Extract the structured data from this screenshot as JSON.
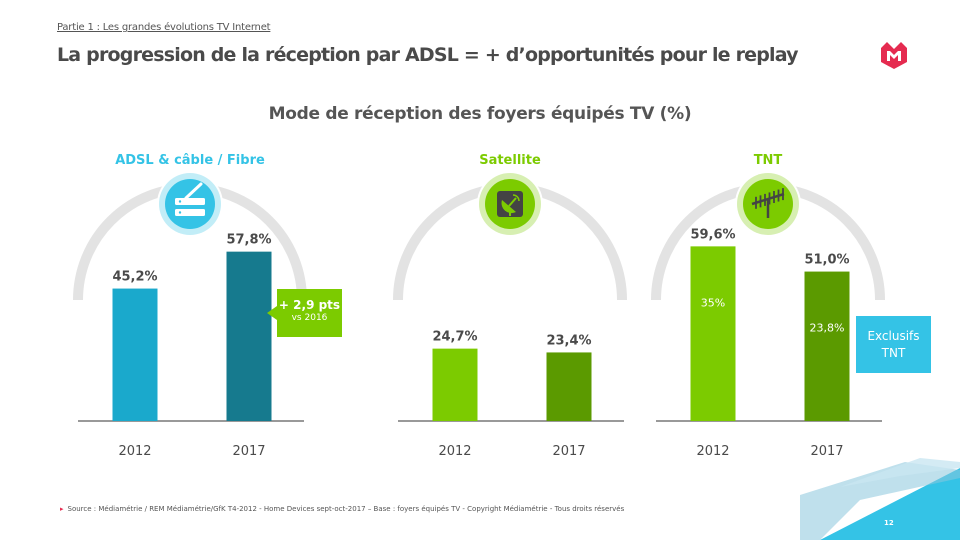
{
  "header": {
    "breadcrumb": "Partie 1 : Les grandes évolutions TV Internet",
    "title": "La progression de la réception par ADSL = + d’opportunités pour le replay"
  },
  "colors": {
    "adsl_light": "#1aa9cc",
    "adsl_dark": "#167a8e",
    "green_light": "#7ccb00",
    "green_dark": "#5b9a00",
    "arc": "#e3e3e3",
    "accent_blue": "#34c3e6",
    "brand_red": "#e52b50"
  },
  "chart_data": {
    "type": "bar",
    "title": "Mode de réception des foyers équipés TV (%)",
    "ylim": [
      0,
      100
    ],
    "panels": [
      {
        "key": "adsl",
        "label": "ADSL & câble / Fibre",
        "label_color": "#34c3e6",
        "icon": "router-icon",
        "icon_color": "#34c3e6",
        "categories": [
          "2012",
          "2017"
        ],
        "values": [
          45.2,
          57.8
        ],
        "value_labels": [
          "45,2%",
          "57,8%"
        ],
        "bar_colors": [
          "#1aa9cc",
          "#167a8e"
        ],
        "inner_values": [
          null,
          null
        ],
        "inner_labels": [
          "",
          ""
        ],
        "annotation": {
          "main": "+ 2,9 pts",
          "sub": "vs 2016"
        }
      },
      {
        "key": "satellite",
        "label": "Satellite",
        "label_color": "#7ccb00",
        "icon": "satellite-dish-icon",
        "icon_color": "#7ccb00",
        "categories": [
          "2012",
          "2017"
        ],
        "values": [
          24.7,
          23.4
        ],
        "value_labels": [
          "24,7%",
          "23,4%"
        ],
        "bar_colors": [
          "#7ccb00",
          "#5b9a00"
        ],
        "inner_values": [
          null,
          null
        ],
        "inner_labels": [
          "",
          ""
        ]
      },
      {
        "key": "tnt",
        "label": "TNT",
        "label_color": "#7ccb00",
        "icon": "antenna-icon",
        "icon_color": "#7ccb00",
        "categories": [
          "2012",
          "2017"
        ],
        "values": [
          59.6,
          51.0
        ],
        "value_labels": [
          "59,6%",
          "51,0%"
        ],
        "bar_colors": [
          "#7ccb00",
          "#5b9a00"
        ],
        "inner_values": [
          35,
          23.8
        ],
        "inner_labels": [
          "35%",
          "23,8%"
        ],
        "annotation": {
          "line1": "Exclusifs",
          "line2": "TNT"
        }
      }
    ]
  },
  "footer": {
    "source": "Source : Médiamétrie / REM Médiamétrie/GfK T4-2012 - Home Devices sept-oct-2017 – Base : foyers équipés TV - Copyright Médiamétrie - Tous droits réservés",
    "page_number": "12"
  }
}
